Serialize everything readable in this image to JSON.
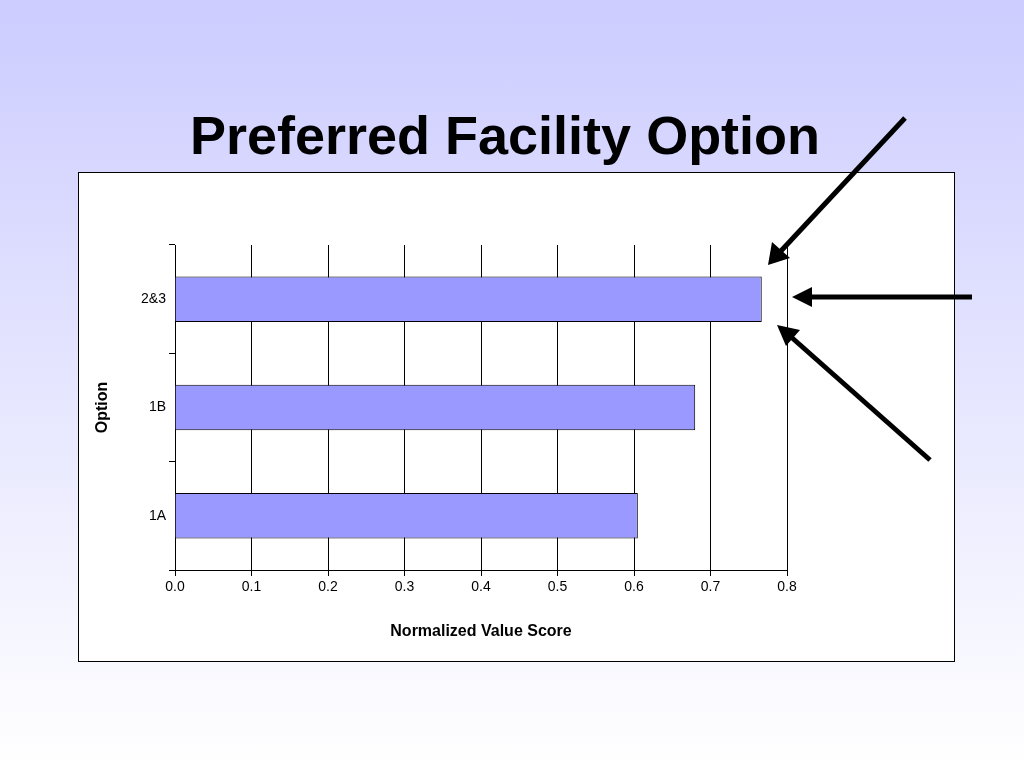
{
  "chart_data": {
    "type": "bar",
    "title": "Preferred Facility Option",
    "xlabel": "Normalized Value Score",
    "ylabel": "Option",
    "orientation": "horizontal",
    "categories": [
      "2&3",
      "1B",
      "1A"
    ],
    "values": [
      0.767,
      0.68,
      0.605
    ],
    "color": "#9999ff",
    "xlim": [
      0,
      0.8
    ],
    "xticks": [
      {
        "value": 0,
        "label": "0.0"
      },
      0.1,
      0.2,
      0.3,
      0.4,
      0.5,
      0.6,
      0.7,
      0.8
    ],
    "grid": "x"
  }
}
